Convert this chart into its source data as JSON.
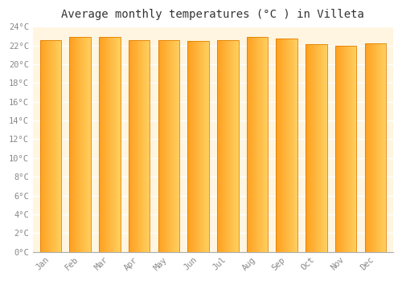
{
  "title": "Average monthly temperatures (°C ) in Villeta",
  "months": [
    "Jan",
    "Feb",
    "Mar",
    "Apr",
    "May",
    "Jun",
    "Jul",
    "Aug",
    "Sep",
    "Oct",
    "Nov",
    "Dec"
  ],
  "values": [
    22.6,
    22.9,
    22.9,
    22.6,
    22.6,
    22.5,
    22.6,
    22.9,
    22.7,
    22.1,
    22.0,
    22.2
  ],
  "bar_color_main": "#FFA020",
  "bar_color_light": "#FFD060",
  "bar_edge_color": "#E08000",
  "ylim": [
    0,
    24
  ],
  "ytick_step": 2,
  "bg_color": "#ffffff",
  "plot_bg_color": "#FFF5E0",
  "grid_color": "#ffffff",
  "title_fontsize": 10,
  "tick_fontsize": 7.5,
  "tick_color": "#888888",
  "font_family": "monospace"
}
